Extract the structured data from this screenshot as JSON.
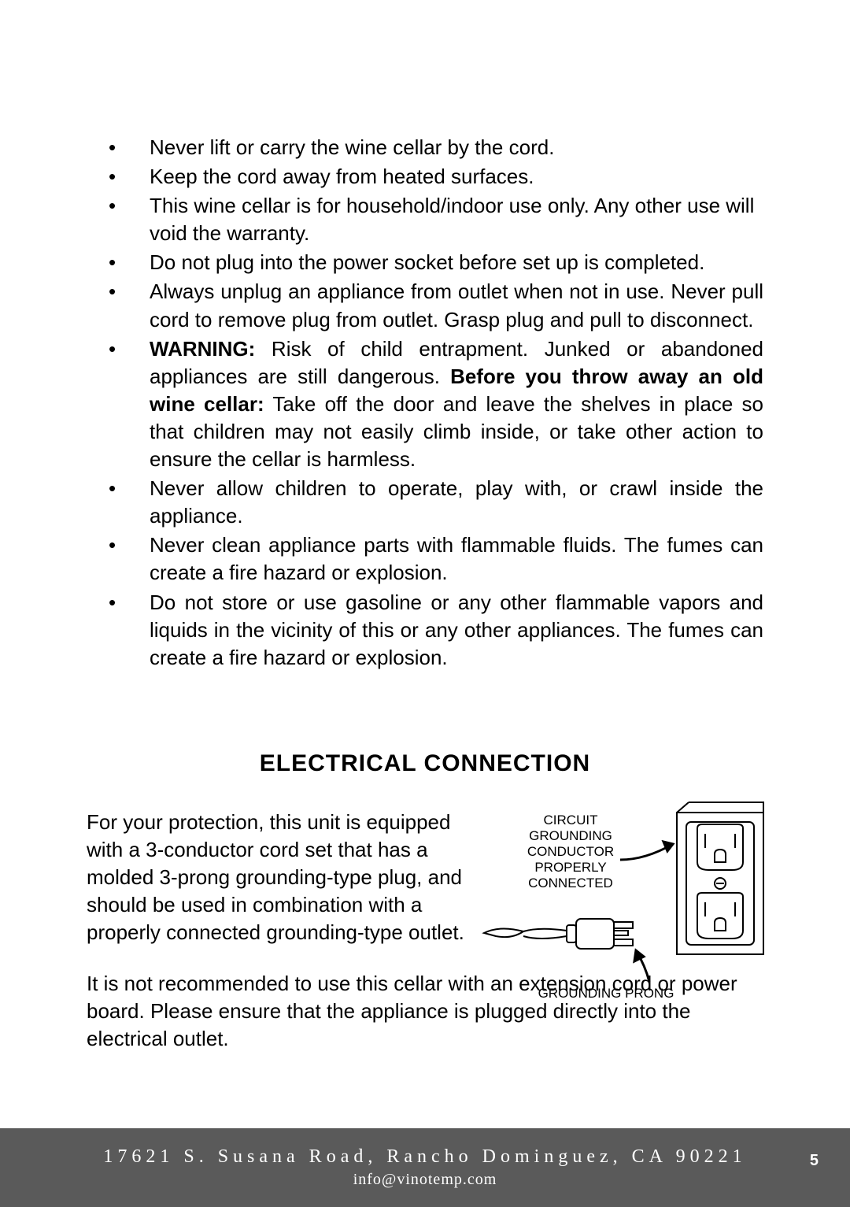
{
  "safety_bullets": [
    {
      "html": "Never lift or carry the wine cellar by the cord.",
      "justify": false
    },
    {
      "html": "Keep the cord away from heated surfaces.",
      "justify": false
    },
    {
      "html": "This wine cellar is for household/indoor use only. Any other use will void the warranty.",
      "justify": false
    },
    {
      "html": "Do not plug into the power socket before set up is completed.",
      "justify": false
    },
    {
      "html": "Always unplug an appliance from outlet when not in use. Never pull cord to remove plug from outlet. Grasp plug and pull to disconnect.",
      "justify": true
    },
    {
      "html": "<span class=\"bold\">WARNING:</span> Risk of child entrapment. Junked or abandoned appliances are still dangerous. <span class=\"bold\">Before you throw away an old wine cellar:</span> Take off the door and leave the shelves in place so that children may not easily climb inside, or take other action to ensure the cellar is harmless.",
      "justify": true
    },
    {
      "html": "Never allow children to operate, play with, or crawl inside the appliance.",
      "justify": true
    },
    {
      "html": "Never clean appliance parts with flammable fluids. The fumes can create a fire hazard or explosion.",
      "justify": true
    },
    {
      "html": "Do not store or use gasoline or any other flammable vapors and liquids in the vicinity of this or any other appliances. The fumes can create a fire hazard or explosion.",
      "justify": true
    }
  ],
  "section_title": "ELECTRICAL CONNECTION",
  "elec_p1": "For your protection, this unit is equipped with a 3-conductor cord set that has a molded 3-prong grounding-type plug, and should be used in combination with a properly connected grounding-type outlet.",
  "elec_p2": "It is not recommended to use this cellar with an extension cord or power board. Please ensure that the appliance is plugged directly into the electrical outlet.",
  "diagram": {
    "label_top_lines": [
      "CIRCUIT",
      "GROUNDING",
      "CONDUCTOR",
      "PROPERLY",
      "CONNECTED"
    ],
    "label_bottom": "GROUNDING PRONG",
    "stroke": "#000000",
    "stroke_width": 2
  },
  "footer": {
    "address": "17621 S. Susana Road, Rancho Dominguez, CA 90221",
    "email": "info@vinotemp.com",
    "page_number": "5",
    "bg_color": "#5a5a5a",
    "text_color": "#ffffff"
  }
}
